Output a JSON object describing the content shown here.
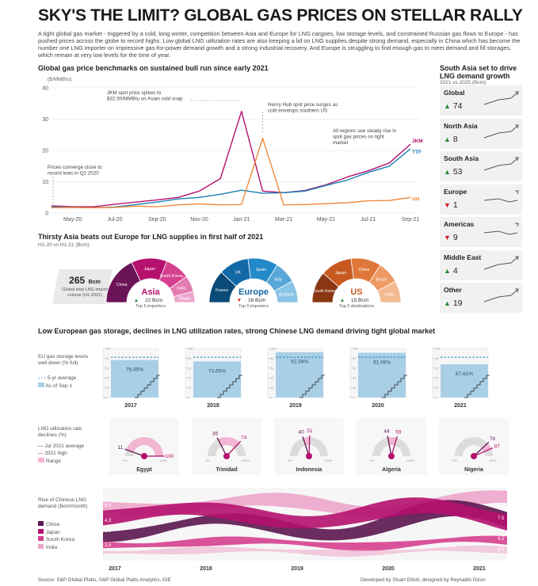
{
  "header": {
    "title": "SKY'S THE LIMIT? GLOBAL GAS PRICES ON STELLAR RALLY",
    "intro": "A tight global gas market - triggered by a cold, long winter, competition between Asia and Europe for LNG cargoes, low storage levels, and constrained Russian gas flows to Europe - has pushed prices across the globe to record highs. Low global LNG utilization rates are also keeping a lid on LNG supplies despite strong demand, especially in China which has become the number one LNG importer on impressive gas-for-power demand growth and a strong industrial recovery. And Europe is struggling to find enough gas to meet demand and fill storages, which remain at very low levels for the time of year."
  },
  "chart_data": [
    {
      "type": "line",
      "title": "Global gas price benchmarks on sustained bull run since early 2021",
      "ylabel": "($/MMBtu)",
      "ylim": [
        0,
        40
      ],
      "yticks": [
        "0",
        "10",
        "20",
        "30",
        "40"
      ],
      "xticks": [
        "May-20",
        "Jul-20",
        "Sep-20",
        "Nov-20",
        "Jan-21",
        "Mar-21",
        "May-21",
        "Jul-21",
        "Sep-21"
      ],
      "x": [
        "Apr-20",
        "May-20",
        "Jun-20",
        "Jul-20",
        "Aug-20",
        "Sep-20",
        "Oct-20",
        "Nov-20",
        "Dec-20",
        "Jan-21",
        "Feb-21",
        "Mar-21",
        "Apr-21",
        "May-21",
        "Jun-21",
        "Jul-21",
        "Aug-21",
        "Sep-21"
      ],
      "series": [
        {
          "name": "JKM",
          "color": "#b5116e",
          "values": [
            2.3,
            2.0,
            2.0,
            2.8,
            3.5,
            4.2,
            5.0,
            7.0,
            11.0,
            32.5,
            7.0,
            6.5,
            7.2,
            9.0,
            11.5,
            13.5,
            16.0,
            22.0
          ]
        },
        {
          "name": "TTF",
          "color": "#1a7fb5",
          "values": [
            2.0,
            1.8,
            1.7,
            1.9,
            2.7,
            3.5,
            4.5,
            5.0,
            6.0,
            7.3,
            6.3,
            6.5,
            7.0,
            8.8,
            10.5,
            13.0,
            15.0,
            20.5
          ]
        },
        {
          "name": "HH",
          "color": "#f08a3c",
          "values": [
            1.7,
            1.8,
            1.7,
            1.8,
            2.2,
            2.0,
            2.6,
            2.9,
            2.6,
            2.7,
            23.9,
            2.6,
            2.7,
            3.0,
            3.3,
            3.9,
            4.0,
            5.0
          ]
        }
      ],
      "annotations": [
        "JKM spot price spikes to $32.50/MMBtu on Asian cold snap",
        "Henry Hub spot price surges as cold envelops southern US",
        "All regions see steady rise in spot gas prices on tight market",
        "Prices converge close to record lows in Q2 2020"
      ]
    },
    {
      "type": "pie",
      "title": "Thirsty Asia beats out Europe for LNG supplies in first half of 2021",
      "subtitle": "H1-20 vs H1-21 (Bcm)",
      "total_value": "265",
      "total_unit": "Bcm",
      "total_label": "Global total LNG import volume (H1-2021)",
      "groups": [
        {
          "name": "Asia",
          "change": "22 Bcm",
          "direction": "up",
          "caption": "Top 5 importers",
          "colors": [
            "#6b1458",
            "#b5116e",
            "#d6408f",
            "#e27bb1",
            "#eda6cb"
          ],
          "slices": [
            "China",
            "Japan",
            "South Korea",
            "India",
            "Taiwan"
          ],
          "values": [
            36,
            26,
            18,
            12,
            8
          ]
        },
        {
          "name": "Europe",
          "change": "16 Bcm",
          "direction": "down",
          "caption": "Top 5 importers",
          "colors": [
            "#0a4a78",
            "#1368a6",
            "#2389c8",
            "#58a9d8",
            "#89c4e6"
          ],
          "slices": [
            "France",
            "UK",
            "Spain",
            "Italy",
            "Belgium"
          ],
          "values": [
            24,
            22,
            22,
            16,
            16
          ]
        },
        {
          "name": "US",
          "change": "15 Bcm",
          "direction": "up",
          "caption": "Top 5 destinations",
          "colors": [
            "#8a3612",
            "#c85a21",
            "#e0773a",
            "#ee9a64",
            "#f4bb92"
          ],
          "slices": [
            "South Korea",
            "Japan",
            "China",
            "Brazil",
            "India"
          ],
          "values": [
            23,
            23,
            22,
            16,
            16
          ]
        }
      ]
    },
    {
      "type": "bar",
      "title": "Low European gas storage, declines in LNG utilization rates, strong Chinese LNG demand driving tight global market",
      "legend_title": "EU gas storage levels well down (% full)",
      "legend": [
        "5-yr average",
        "As of Sep 1"
      ],
      "ytick_labels": [
        "0",
        "10",
        "20",
        "30",
        "40",
        "50",
        "60",
        "70",
        "80",
        "90",
        "100"
      ],
      "categories": [
        "2017",
        "2018",
        "2019",
        "2020",
        "2021"
      ],
      "values": [
        76.45,
        73.65,
        92.34,
        91.08,
        67.61
      ],
      "labels": [
        "76.45%",
        "73.65%",
        "92.34%",
        "91.08%",
        "67.61%"
      ],
      "five_year_average": 82
    },
    {
      "type": "gauge",
      "legend_title": "LNG utilization rate declines (%)",
      "legend": [
        "Jul 2021 average",
        "2021 high",
        "Range"
      ],
      "range_labels": [
        "0%",
        "100%"
      ],
      "items": [
        {
          "name": "Egypt",
          "jul_avg": 11,
          "high": 100
        },
        {
          "name": "Trinidad",
          "jul_avg": 35,
          "high": 74
        },
        {
          "name": "Indonesia",
          "jul_avg": 40,
          "high": 51
        },
        {
          "name": "Algeria",
          "jul_avg": 44,
          "high": 59
        },
        {
          "name": "Nigeria",
          "jul_avg": 76,
          "high": 87
        }
      ]
    },
    {
      "type": "area",
      "legend_title": "Rise of Chinese LNG demand (Bcm/month)",
      "xticks": [
        "2017",
        "2018",
        "2019",
        "2020",
        "2021"
      ],
      "series": [
        {
          "name": "China",
          "color": "#5c1650",
          "start": "3.8",
          "end": "7.5"
        },
        {
          "name": "Japan",
          "color": "#b5116e",
          "start": "8.6",
          "end": "8.8"
        },
        {
          "name": "South Korea",
          "color": "#d6408f",
          "start": "4.3",
          "end": "4.2"
        },
        {
          "name": "India",
          "color": "#eda6cb",
          "start": "2.5",
          "end": "2.0"
        }
      ]
    }
  ],
  "regional": {
    "title": "South Asia set to drive LNG demand growth",
    "subtitle": "2021 vs 2025 (Bcm)",
    "items": [
      {
        "name": "Global",
        "value": "74",
        "dir": "up"
      },
      {
        "name": "North Asia",
        "value": "8",
        "dir": "up"
      },
      {
        "name": "South Asia",
        "value": "53",
        "dir": "up"
      },
      {
        "name": "Europe",
        "value": "1",
        "dir": "down"
      },
      {
        "name": "Americas",
        "value": "9",
        "dir": "down"
      },
      {
        "name": "Middle East",
        "value": "4",
        "dir": "up"
      },
      {
        "name": "Other",
        "value": "19",
        "dir": "up"
      }
    ]
  },
  "footer": {
    "source": "Source: S&P Global Platts, S&P Global Platts Analytics, GIE",
    "credit": "Developed by Stuart Elliott, designed by Reynaldo Dizon"
  }
}
